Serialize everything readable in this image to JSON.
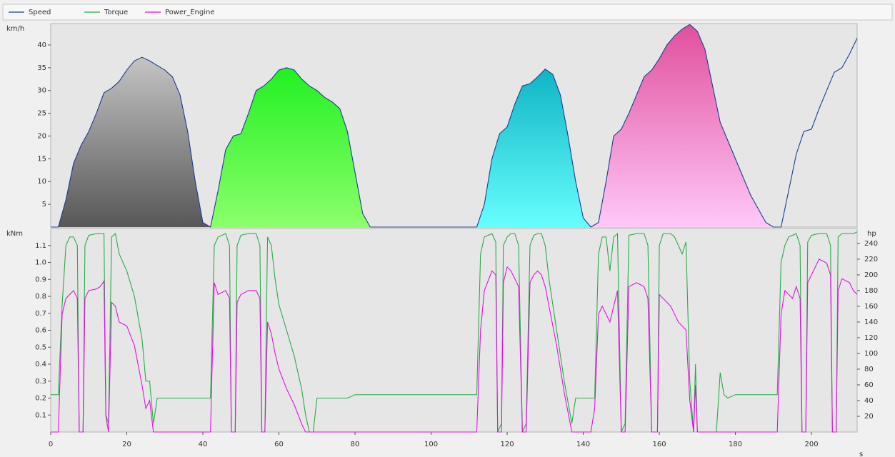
{
  "chart_data": [
    {
      "type": "area",
      "y_label": "km/h",
      "x": [
        0,
        2,
        4,
        6,
        8,
        10,
        12,
        14,
        16,
        18,
        20,
        22,
        24,
        26,
        28,
        30,
        32,
        34,
        36,
        38,
        40,
        42,
        44,
        46,
        48,
        50,
        52,
        54,
        56,
        58,
        60,
        62,
        64,
        66,
        68,
        70,
        72,
        74,
        76,
        78,
        80,
        82,
        84,
        86,
        88,
        90,
        92,
        94,
        96,
        98,
        100,
        102,
        104,
        106,
        108,
        110,
        112,
        114,
        116,
        118,
        120,
        122,
        124,
        126,
        128,
        130,
        132,
        134,
        136,
        138,
        140,
        142,
        144,
        146,
        148,
        150,
        152,
        154,
        156,
        158,
        160,
        162,
        164,
        166,
        168,
        170,
        172,
        174,
        176,
        178,
        180,
        182,
        184,
        186,
        188,
        190,
        192,
        194,
        196,
        198,
        200,
        202,
        204,
        206,
        208,
        210,
        212
      ],
      "series": [
        {
          "name": "Speed",
          "color": "#1a3f8f",
          "values": [
            0,
            0,
            6,
            14,
            18,
            21,
            25,
            29.5,
            30.5,
            32,
            34.5,
            36.5,
            37.3,
            36.5,
            35.5,
            34.5,
            33,
            29,
            21,
            10,
            1,
            0,
            8,
            17,
            20,
            20.5,
            25,
            30,
            31,
            32.5,
            34.5,
            35,
            34.5,
            32.5,
            31,
            30,
            28.5,
            27.5,
            26,
            21,
            12,
            3,
            0,
            0,
            0,
            0,
            0,
            0,
            0,
            0,
            0,
            0,
            0,
            0,
            0,
            0,
            0,
            5,
            15,
            20.5,
            22,
            27,
            31,
            31.5,
            33,
            34.7,
            33.5,
            29,
            20,
            10,
            2,
            0,
            1,
            10,
            20,
            21.5,
            25,
            29,
            33,
            34.5,
            37,
            40,
            42,
            43.5,
            44.5,
            43,
            39,
            31,
            23,
            19,
            15,
            11,
            7,
            4,
            1,
            0,
            0,
            8,
            16,
            21,
            21.5,
            26,
            30,
            34,
            35,
            38,
            41.5
          ]
        }
      ],
      "fills": [
        {
          "x_range": [
            2,
            42
          ],
          "top_color": "#c4c4c4",
          "bottom_color": "#575757"
        },
        {
          "x_range": [
            42,
            84
          ],
          "top_color": "#22f022",
          "bottom_color": "#8cff6c"
        },
        {
          "x_range": [
            112,
            142
          ],
          "top_color": "#10b4c4",
          "bottom_color": "#66ffff"
        },
        {
          "x_range": [
            142,
            190
          ],
          "top_color": "#e0509c",
          "bottom_color": "#ffc8f8"
        }
      ],
      "xlim": [
        0,
        212
      ],
      "ylim": [
        0,
        44.7
      ],
      "yticks": [
        5,
        10,
        15,
        20,
        25,
        30,
        35,
        40
      ],
      "grid": false
    },
    {
      "type": "line",
      "y_label": "kNm",
      "y2_label": "hp",
      "x_label": "s",
      "x": [
        0,
        2,
        3,
        4,
        5,
        6,
        7,
        7.5,
        8.5,
        9,
        10,
        12,
        13,
        14,
        14.5,
        15.2,
        16,
        17,
        18,
        20,
        22,
        24,
        25,
        26,
        27,
        28,
        42,
        43,
        44,
        46,
        47,
        47.5,
        48.5,
        49,
        50,
        52,
        54,
        55,
        55.5,
        56.3,
        57,
        58,
        59,
        60,
        62,
        64,
        66,
        67,
        68,
        69,
        70,
        78,
        80,
        98,
        112,
        113,
        114,
        116,
        117,
        117.5,
        118.5,
        119,
        120,
        121,
        122,
        123,
        124,
        125,
        126,
        127,
        128,
        129,
        130,
        131,
        133,
        135,
        137,
        138,
        142,
        143,
        144,
        145,
        146,
        147,
        148,
        149,
        150,
        151,
        152,
        154,
        156,
        157,
        158,
        159.5,
        160,
        161,
        163,
        164,
        165,
        166,
        167,
        168,
        169,
        169.5,
        170,
        172,
        175,
        176,
        177,
        178,
        180,
        191,
        192,
        193,
        194,
        195,
        196,
        197,
        197.5,
        198.5,
        199,
        200,
        202,
        204,
        205,
        205.5,
        206.5,
        207,
        208,
        210,
        211,
        212
      ],
      "series": [
        {
          "name": "Torque",
          "color": "#2aaa4a",
          "values": [
            0.22,
            0.22,
            0.75,
            1.1,
            1.15,
            1.15,
            1.1,
            0,
            0,
            1.1,
            1.16,
            1.17,
            1.17,
            1.17,
            0.1,
            0.05,
            1.15,
            1.17,
            1.05,
            0.95,
            0.8,
            0.55,
            0.3,
            0.3,
            0.05,
            0.2,
            0.2,
            1.1,
            1.15,
            1.17,
            1.1,
            0,
            0,
            1.1,
            1.16,
            1.17,
            1.17,
            1.1,
            0,
            0,
            1.15,
            1.1,
            0.9,
            0.75,
            0.6,
            0.45,
            0.25,
            0.1,
            0,
            0,
            0.2,
            0.2,
            0.22,
            0.22,
            0.22,
            1.05,
            1.15,
            1.17,
            1.12,
            0,
            0.05,
            1.1,
            1.15,
            1.17,
            1.17,
            1.1,
            0,
            0.05,
            1.1,
            1.16,
            1.17,
            1.17,
            1.1,
            0.9,
            0.6,
            0.3,
            0.05,
            0.2,
            0.2,
            0.2,
            1.05,
            1.15,
            1.15,
            0.95,
            1.15,
            1.17,
            0,
            0.05,
            1.16,
            1.17,
            1.17,
            1.1,
            0,
            0,
            1.1,
            1.17,
            1.17,
            1.15,
            1.1,
            1.05,
            1.12,
            0.3,
            0,
            0.4,
            0,
            0,
            0,
            0.35,
            0.22,
            0.2,
            0.22,
            0.22,
            1.0,
            1.1,
            1.15,
            1.16,
            1.17,
            1.1,
            0,
            0,
            1.12,
            1.16,
            1.17,
            1.17,
            1.1,
            0,
            0,
            1.15,
            1.17,
            1.17,
            1.17,
            1.18
          ]
        },
        {
          "name": "Power_Engine",
          "color": "#e014e0",
          "axis": "y2",
          "values": [
            0,
            0,
            150,
            170,
            175,
            180,
            170,
            0,
            0,
            170,
            180,
            182,
            185,
            192,
            20,
            0,
            165,
            160,
            140,
            135,
            110,
            60,
            30,
            40,
            0,
            0,
            0,
            190,
            175,
            180,
            170,
            0,
            0,
            165,
            175,
            180,
            180,
            170,
            0,
            0,
            140,
            125,
            100,
            80,
            55,
            35,
            10,
            0,
            0,
            0,
            0,
            0,
            0,
            0,
            0,
            130,
            180,
            205,
            200,
            0,
            0,
            190,
            210,
            205,
            195,
            185,
            0,
            0,
            190,
            200,
            205,
            200,
            185,
            160,
            110,
            50,
            0,
            0,
            0,
            30,
            150,
            160,
            150,
            140,
            160,
            180,
            0,
            0,
            185,
            190,
            185,
            170,
            0,
            0,
            175,
            170,
            160,
            150,
            140,
            135,
            130,
            40,
            0,
            60,
            0,
            0,
            0,
            0,
            0,
            0,
            0,
            0,
            150,
            180,
            175,
            170,
            185,
            170,
            0,
            0,
            190,
            200,
            220,
            215,
            200,
            0,
            0,
            180,
            195,
            190,
            180,
            175
          ]
        }
      ],
      "xlim": [
        0,
        212
      ],
      "xticks": [
        0,
        20,
        40,
        60,
        80,
        100,
        120,
        140,
        160,
        180,
        200
      ],
      "ylim": [
        0,
        1.2
      ],
      "yticks": [
        0.1,
        0.2,
        0.3,
        0.4,
        0.5,
        0.6,
        0.7,
        0.8,
        0.9,
        {
          "value": 1,
          "label": "1.0"
        },
        1.1
      ],
      "y2lim": [
        0,
        259
      ],
      "y2ticks": [
        20,
        40,
        60,
        80,
        100,
        120,
        140,
        160,
        180,
        200,
        220,
        240
      ],
      "grid": false
    }
  ]
}
